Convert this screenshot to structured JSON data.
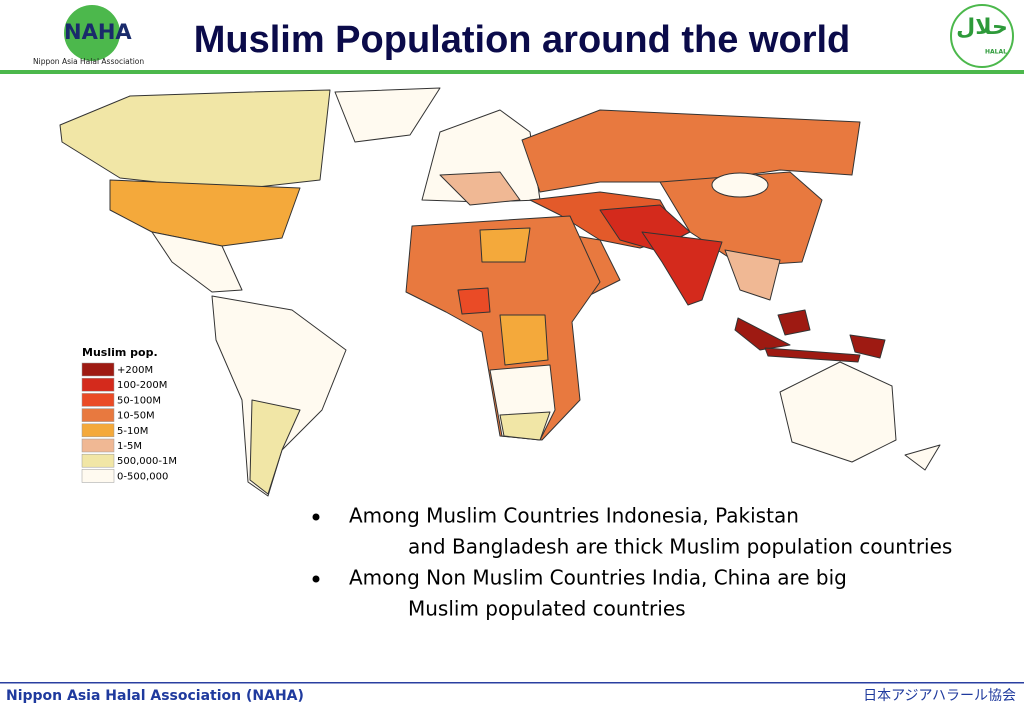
{
  "header": {
    "logo_left": "NAHA",
    "logo_left_sub": "Nippon Asia Halal Association",
    "title": "Muslim Population around the world",
    "logo_right": "حلال",
    "logo_right_sub": "HALAL"
  },
  "legend": {
    "title": "Muslim pop.",
    "items": [
      {
        "label": "+200M",
        "color": "#9e1a12"
      },
      {
        "label": "100-200M",
        "color": "#d42a1c"
      },
      {
        "label": "50-100M",
        "color": "#ea4b26"
      },
      {
        "label": "10-50M",
        "color": "#e8793f"
      },
      {
        "label": "5-10M",
        "color": "#f4a93b"
      },
      {
        "label": "1-5M",
        "color": "#f0b894"
      },
      {
        "label": "500,000-1M",
        "color": "#f1e6a6"
      },
      {
        "label": "0-500,000",
        "color": "#fffaf0"
      }
    ]
  },
  "bullets": [
    {
      "lines": [
        "Among Muslim Countries Indonesia, Pakistan",
        "and Bangladesh are thick Muslim population countries"
      ]
    },
    {
      "lines": [
        "Among Non Muslim Countries India, China are big",
        "Muslim populated countries"
      ]
    }
  ],
  "footer": {
    "left": "Nippon Asia Halal Association (NAHA)",
    "right": "日本アジアハラール協会"
  }
}
